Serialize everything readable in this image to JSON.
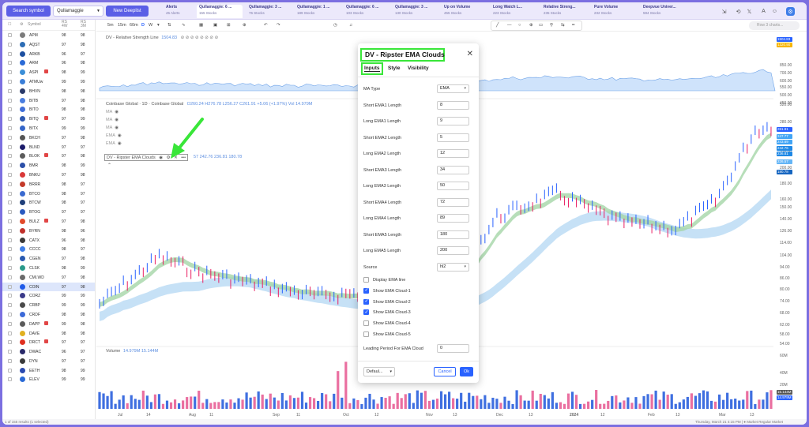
{
  "topbar": {
    "search_label": "Search symbol",
    "list_selected": "Qullamaggie",
    "new_deeplist_label": "New Deeplist",
    "tabs": [
      {
        "title": "Alerts",
        "sub": "45 Alerts"
      },
      {
        "title": "Qullamaggie: 6 ...",
        "sub": "155 Stocks"
      },
      {
        "title": "Qullamaggie: 3 ...",
        "sub": "76 Stocks"
      },
      {
        "title": "Qullamaggie: 1 ...",
        "sub": "189 Stocks"
      },
      {
        "title": "Qullamaggie: 6 ...",
        "sub": "103 Stocks"
      },
      {
        "title": "Qullamaggie: 3 ...",
        "sub": "130 Stocks"
      },
      {
        "title": "Up on Volume",
        "sub": "455 Stocks"
      },
      {
        "title": "Long Watch L...",
        "sub": "223 Stocks"
      },
      {
        "title": "Relative Streng...",
        "sub": "235 Stocks"
      },
      {
        "title": "Pure Volume",
        "sub": "232 Stocks"
      },
      {
        "title": "Deepvue Univer...",
        "sub": "594 Stocks"
      }
    ]
  },
  "watchlist": {
    "headers": {
      "symbol": "Symbol",
      "rs1": "RS 4W",
      "rs2": "RS 3M"
    },
    "rows": [
      {
        "sym": "APM",
        "r1": "98",
        "r2": "98",
        "color": "#7b7b7b",
        "flag": false
      },
      {
        "sym": "AQST",
        "r1": "97",
        "r2": "98",
        "color": "#2d6db5",
        "flag": false
      },
      {
        "sym": "ARKB",
        "r1": "96",
        "r2": "97",
        "color": "#1c4fa0",
        "flag": false
      },
      {
        "sym": "ARM",
        "r1": "96",
        "r2": "98",
        "color": "#2a6ad6",
        "flag": false
      },
      {
        "sym": "ASPI",
        "r1": "98",
        "r2": "99",
        "color": "#3b8fd8",
        "flag": true
      },
      {
        "sym": "ATMUw",
        "r1": "99",
        "r2": "99",
        "color": "#3b7fd8",
        "flag": false
      },
      {
        "sym": "BHVN",
        "r1": "98",
        "r2": "98",
        "color": "#2a3a6a",
        "flag": false
      },
      {
        "sym": "BITB",
        "r1": "97",
        "r2": "98",
        "color": "#4a7ee0",
        "flag": false
      },
      {
        "sym": "BITO",
        "r1": "98",
        "r2": "98",
        "color": "#3f6ed8",
        "flag": false
      },
      {
        "sym": "BITQ",
        "r1": "97",
        "r2": "99",
        "color": "#2d58b0",
        "flag": true
      },
      {
        "sym": "BITX",
        "r1": "99",
        "r2": "99",
        "color": "#3566c9",
        "flag": false
      },
      {
        "sym": "BKCH",
        "r1": "97",
        "r2": "98",
        "color": "#555555",
        "flag": false
      },
      {
        "sym": "BLND",
        "r1": "97",
        "r2": "97",
        "color": "#1b1b6a",
        "flag": false
      },
      {
        "sym": "BLOK",
        "r1": "97",
        "r2": "98",
        "color": "#5b5b5b",
        "flag": true
      },
      {
        "sym": "BMR",
        "r1": "98",
        "r2": "99",
        "color": "#2b4fa8",
        "flag": false
      },
      {
        "sym": "BNKU",
        "r1": "97",
        "r2": "98",
        "color": "#d93838",
        "flag": false
      },
      {
        "sym": "BRRR",
        "r1": "98",
        "r2": "97",
        "color": "#c43a2a",
        "flag": false
      },
      {
        "sym": "BTCO",
        "r1": "98",
        "r2": "97",
        "color": "#3a6ad0",
        "flag": false
      },
      {
        "sym": "BTCW",
        "r1": "98",
        "r2": "97",
        "color": "#1f3f7a",
        "flag": false
      },
      {
        "sym": "BTOG",
        "r1": "97",
        "r2": "97",
        "color": "#2a5ac0",
        "flag": false
      },
      {
        "sym": "BULZ",
        "r1": "97",
        "r2": "98",
        "color": "#e24a2a",
        "flag": true
      },
      {
        "sym": "BYRN",
        "r1": "98",
        "r2": "96",
        "color": "#c0302a",
        "flag": false
      },
      {
        "sym": "CATX",
        "r1": "96",
        "r2": "98",
        "color": "#3a3a3a",
        "flag": false
      },
      {
        "sym": "CCCC",
        "r1": "98",
        "r2": "97",
        "color": "#3f7ee8",
        "flag": false
      },
      {
        "sym": "CGEN",
        "r1": "97",
        "r2": "98",
        "color": "#2a5ab0",
        "flag": false
      },
      {
        "sym": "CLSK",
        "r1": "98",
        "r2": "99",
        "color": "#2a9a8a",
        "flag": false
      },
      {
        "sym": "CMI.WD",
        "r1": "97",
        "r2": "98",
        "color": "#6a6a6a",
        "flag": false
      },
      {
        "sym": "COIN",
        "r1": "97",
        "r2": "98",
        "color": "#1f5ae8",
        "flag": false,
        "selected": true
      },
      {
        "sym": "CORZ",
        "r1": "99",
        "r2": "99",
        "color": "#3a3a8a",
        "flag": false
      },
      {
        "sym": "CRBP",
        "r1": "99",
        "r2": "99",
        "color": "#4a4a4a",
        "flag": false
      },
      {
        "sym": "CRDF",
        "r1": "98",
        "r2": "98",
        "color": "#3c6ad8",
        "flag": false
      },
      {
        "sym": "DAPP",
        "r1": "99",
        "r2": "98",
        "color": "#5a5a5a",
        "flag": true
      },
      {
        "sym": "DAVE",
        "r1": "98",
        "r2": "98",
        "color": "#e0b020",
        "flag": false
      },
      {
        "sym": "DRCT",
        "r1": "97",
        "r2": "97",
        "color": "#e03020",
        "flag": true
      },
      {
        "sym": "DWAC",
        "r1": "96",
        "r2": "97",
        "color": "#2a2a6a",
        "flag": false
      },
      {
        "sym": "DYN",
        "r1": "97",
        "r2": "97",
        "color": "#3a3a3a",
        "flag": false
      },
      {
        "sym": "EETH",
        "r1": "98",
        "r2": "99",
        "color": "#2a4ab0",
        "flag": false
      },
      {
        "sym": "ELEV",
        "r1": "99",
        "r2": "99",
        "color": "#2a6ad6",
        "flag": false
      }
    ]
  },
  "status": {
    "left": "1 of 155 results (1 selected)",
    "right": "Thursday, March 21 4:15 PM | ● Market Regular Market"
  },
  "chart_toolbar": {
    "intervals": [
      "5m",
      "15m",
      "60m",
      "D",
      "W"
    ],
    "active_interval": "D",
    "search_placeholder": "Row 3 charts..."
  },
  "rs_pane": {
    "label": "DV - Relative Strength Line",
    "value1": "1504.83",
    "value2": "1320.90",
    "axis": [
      "850.00",
      "700.00",
      "600.00",
      "550.00",
      "500.00",
      "450.00"
    ]
  },
  "main_pane": {
    "title": "Coinbase Global · 1D · Coinbase Global",
    "ohlc": "O260.24  H276.78  L256.27  C261.91  +5.06 (+1.97%)  Vol 14.979M",
    "ma_rows": [
      "MA",
      "MA",
      "MA",
      "EMA",
      "EMA"
    ],
    "indicator_label": "DV - Ripster EMA Clouds",
    "indicator_values": "57  242.76  236.81  180.78",
    "axis": [
      "520.00",
      "280.00",
      "240.00",
      "220.00",
      "200.00",
      "180.00",
      "160.00",
      "150.00",
      "140.00",
      "126.00",
      "114.00",
      "104.00",
      "94.00",
      "86.00",
      "80.00",
      "74.00",
      "68.00",
      "62.00",
      "58.00",
      "54.00"
    ],
    "badges": [
      {
        "text": "261.91",
        "color": "#2962ff"
      },
      {
        "text": "247.77",
        "color": "#42a5f5"
      },
      {
        "text": "243.69",
        "color": "#42a5f5"
      },
      {
        "text": "242.76",
        "color": "#1e88e5"
      },
      {
        "text": "236.81",
        "color": "#1e88e5"
      },
      {
        "text": "226.57",
        "color": "#64b5f6"
      },
      {
        "text": "180.78",
        "color": "#1565c0"
      }
    ]
  },
  "volume_pane": {
    "label": "Volume",
    "values": "14.979M  15.144M",
    "axis": [
      "60M",
      "40M",
      "20M"
    ],
    "badges": [
      "15.144M",
      "14.979M"
    ]
  },
  "time_axis": [
    "Jul",
    "14",
    "Aug",
    "11",
    "Sep",
    "11",
    "Oct",
    "12",
    "Nov",
    "13",
    "Dec",
    "13",
    "2024",
    "12",
    "Feb",
    "13",
    "Mar",
    "13"
  ],
  "dialog": {
    "title": "DV - Ripster EMA Clouds",
    "tabs": [
      "Inputs",
      "Style",
      "Visibility"
    ],
    "fields": [
      {
        "label": "MA Type",
        "value": "EMA",
        "select": true
      },
      {
        "label": "Short EMA1 Length",
        "value": "8"
      },
      {
        "label": "Long EMA1 Length",
        "value": "9"
      },
      {
        "label": "Short EMA2 Length",
        "value": "5"
      },
      {
        "label": "Long EMA2 Length",
        "value": "12"
      },
      {
        "label": "Short EMA3 Length",
        "value": "34"
      },
      {
        "label": "Long EMA3 Length",
        "value": "50"
      },
      {
        "label": "Short EMA4 Length",
        "value": "72"
      },
      {
        "label": "Long EMA4 Length",
        "value": "89"
      },
      {
        "label": "Short EMA5 Length",
        "value": "180"
      },
      {
        "label": "Long EMA5 Length",
        "value": "200"
      },
      {
        "label": "Source",
        "value": "hl2",
        "select": true
      }
    ],
    "checkboxes": [
      {
        "label": "Display EMA line",
        "checked": false
      },
      {
        "label": "Show EMA Cloud-1",
        "checked": true
      },
      {
        "label": "Show EMA Cloud-2",
        "checked": true
      },
      {
        "label": "Show EMA Cloud-3",
        "checked": true
      },
      {
        "label": "Show EMA Cloud-4",
        "checked": false
      },
      {
        "label": "Show EMA Cloud-5",
        "checked": false
      }
    ],
    "leading": {
      "label": "Leading Period For EMA Cloud",
      "value": "0"
    },
    "defaults_label": "Defaul...",
    "cancel_label": "Cancel",
    "ok_label": "Ok"
  },
  "colors": {
    "accent": "#5b5fe6",
    "highlight": "#39e639",
    "primary_button": "#2962ff"
  }
}
